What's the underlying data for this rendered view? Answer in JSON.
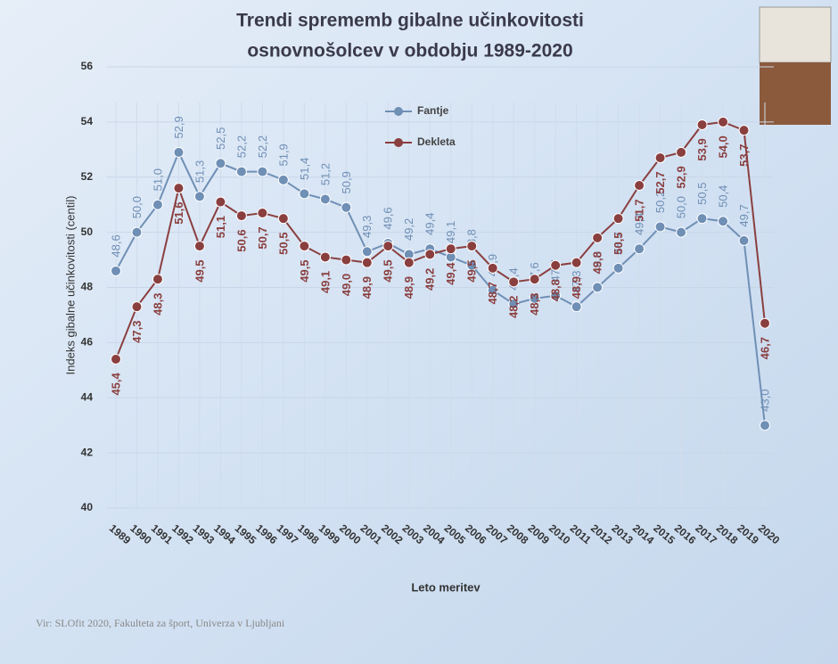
{
  "chart_data": {
    "type": "line",
    "title": "Trendi sprememb gibalne učinkovitosti",
    "subtitle": "osnovnošolcev v obdobju 1989-2020",
    "y_label": "Indeks gibalne učinkovitosti (centil)",
    "x_label": "Leto meritev",
    "source": "Vir: SLOfit 2020, Fakulteta za šport, Univerza v Ljubljani",
    "categories": [
      "1989",
      "1990",
      "1991",
      "1992",
      "1993",
      "1994",
      "1995",
      "1996",
      "1997",
      "1998",
      "1999",
      "2000",
      "2001",
      "2002",
      "2003",
      "2004",
      "2005",
      "2006",
      "2007",
      "2008",
      "2009",
      "2010",
      "2011",
      "2012",
      "2013",
      "2014",
      "2015",
      "2016",
      "2017",
      "2018",
      "2019",
      "2020"
    ],
    "series": [
      {
        "name": "Fantje",
        "color": "#6f8fb5",
        "values": [
          48.6,
          50.0,
          51.0,
          52.9,
          51.3,
          52.5,
          52.2,
          52.2,
          51.9,
          51.4,
          51.2,
          50.9,
          49.3,
          49.6,
          49.2,
          49.4,
          49.1,
          48.8,
          47.9,
          47.4,
          47.6,
          47.7,
          47.3,
          48.0,
          48.7,
          49.4,
          50.2,
          50.0,
          50.5,
          50.4,
          49.7,
          43.0
        ],
        "value_labels": [
          "48,6",
          "50,0",
          "51,0",
          "52,9",
          "51,3",
          "52,5",
          "52,2",
          "52,2",
          "51,9",
          "51,4",
          "51,2",
          "50,9",
          "49,3",
          "49,6",
          "49,2",
          "49,4",
          "49,1",
          "48,8",
          "47,9",
          "47,4",
          "47,6",
          "47,7",
          "47,3",
          "48,0",
          "48,7",
          "49,4",
          "50,2",
          "50,0",
          "50,5",
          "50,4",
          "49,7",
          "43,0"
        ]
      },
      {
        "name": "Dekleta",
        "color": "#8a3f3f",
        "values": [
          45.4,
          47.3,
          48.3,
          51.6,
          49.5,
          51.1,
          50.6,
          50.7,
          50.5,
          49.5,
          49.1,
          49.0,
          48.9,
          49.5,
          48.9,
          49.2,
          49.4,
          49.5,
          48.7,
          48.2,
          48.3,
          48.8,
          48.9,
          49.8,
          50.5,
          51.7,
          52.7,
          52.9,
          53.9,
          54.0,
          53.7,
          46.7
        ],
        "value_labels": [
          "45,4",
          "47,3",
          "48,3",
          "51,6",
          "49,5",
          "51,1",
          "50,6",
          "50,7",
          "50,5",
          "49,5",
          "49,1",
          "49,0",
          "48,9",
          "49,5",
          "48,9",
          "49,2",
          "49,4",
          "49,5",
          "48,7",
          "48,2",
          "48,3",
          "48,8",
          "48,9",
          "49,8",
          "50,5",
          "51,7",
          "52,7",
          "52,9",
          "53,9",
          "54,0",
          "53,7",
          "46,7"
        ]
      }
    ],
    "ylim": [
      40,
      56
    ],
    "yticks": [
      40,
      42,
      44,
      46,
      48,
      50,
      52,
      54,
      56
    ],
    "grid": true,
    "legend": "top"
  }
}
